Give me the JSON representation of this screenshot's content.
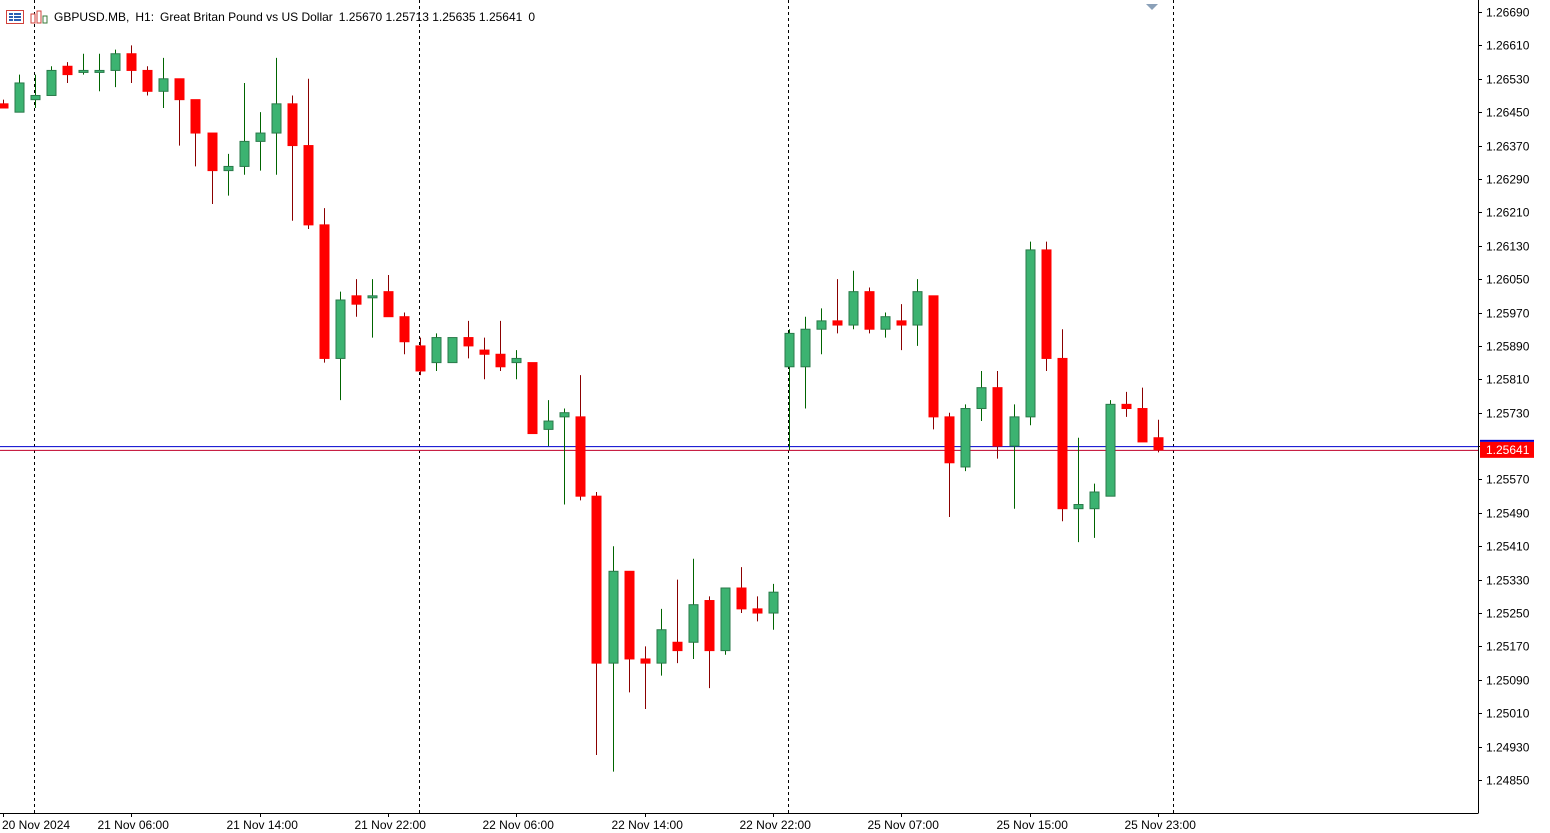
{
  "header": {
    "symbol": "GBPUSD.MB,",
    "timeframe": "H1:",
    "description": "Great Britan Pound vs US Dollar",
    "ohlc": "1.25670 1.25713 1.25635 1.25641",
    "volume": "0"
  },
  "current_price_label": "1.25641",
  "colors": {
    "bull": "#3cb371",
    "bear": "#ff0000",
    "wick_bull": "#006400",
    "wick_bear": "#8b0000",
    "bid_line": "#0000cd",
    "ask_line": "#c0002a",
    "price_tag": "#ff0000",
    "grid_vline": "#000000",
    "axis": "#000000"
  },
  "icons": [
    "list-icon",
    "bar-chart-icon"
  ],
  "chart_data": {
    "type": "candlestick",
    "ylim": [
      1.2481,
      1.2671
    ],
    "y_ticks": [
      "1.26690",
      "1.26610",
      "1.26530",
      "1.26450",
      "1.26370",
      "1.26290",
      "1.26210",
      "1.26130",
      "1.26050",
      "1.25970",
      "1.25890",
      "1.25810",
      "1.25730",
      "1.25650",
      "1.25570",
      "1.25490",
      "1.25410",
      "1.25330",
      "1.25250",
      "1.25170",
      "1.25090",
      "1.25010",
      "1.24930",
      "1.24850"
    ],
    "x_labels": [
      "20 Nov 2024",
      "21 Nov 06:00",
      "21 Nov 14:00",
      "21 Nov 22:00",
      "22 Nov 06:00",
      "22 Nov 14:00",
      "22 Nov 22:00",
      "25 Nov 07:00",
      "25 Nov 15:00",
      "25 Nov 23:00"
    ],
    "x_label_index": [
      0,
      8,
      16,
      24,
      32,
      40,
      48,
      56,
      64,
      72
    ],
    "session_separators": [
      2,
      26,
      49,
      73
    ],
    "bid": 1.25641,
    "ask": 1.2565,
    "candles": [
      [
        1.2647,
        1.2648,
        1.2646,
        1.2646
      ],
      [
        1.2645,
        1.2654,
        1.2645,
        1.2652
      ],
      [
        1.2648,
        1.2654,
        1.2646,
        1.2649
      ],
      [
        1.2649,
        1.2656,
        1.2649,
        1.2655
      ],
      [
        1.2656,
        1.2657,
        1.2652,
        1.2654
      ],
      [
        1.2655,
        1.2659,
        1.2654,
        1.2655
      ],
      [
        1.2655,
        1.2659,
        1.265,
        1.2655
      ],
      [
        1.2655,
        1.266,
        1.2651,
        1.2659
      ],
      [
        1.2659,
        1.2661,
        1.2652,
        1.2655
      ],
      [
        1.2655,
        1.2656,
        1.2649,
        1.265
      ],
      [
        1.265,
        1.2658,
        1.2646,
        1.2653
      ],
      [
        1.2653,
        1.2653,
        1.2637,
        1.2648
      ],
      [
        1.2648,
        1.2648,
        1.2632,
        1.264
      ],
      [
        1.264,
        1.264,
        1.2623,
        1.2631
      ],
      [
        1.2631,
        1.2635,
        1.2625,
        1.2632
      ],
      [
        1.2632,
        1.2652,
        1.263,
        1.2638
      ],
      [
        1.2638,
        1.2645,
        1.2631,
        1.264
      ],
      [
        1.264,
        1.2658,
        1.263,
        1.2647
      ],
      [
        1.2647,
        1.2649,
        1.2619,
        1.2637
      ],
      [
        1.2637,
        1.2653,
        1.2617,
        1.2618
      ],
      [
        1.2618,
        1.2622,
        1.2585,
        1.2586
      ],
      [
        1.2586,
        1.2602,
        1.2576,
        1.26
      ],
      [
        1.2601,
        1.2605,
        1.2596,
        1.2599
      ],
      [
        1.2601,
        1.2605,
        1.2591,
        1.2601
      ],
      [
        1.2602,
        1.2606,
        1.2596,
        1.2596
      ],
      [
        1.2596,
        1.2597,
        1.2587,
        1.259
      ],
      [
        1.2589,
        1.2591,
        1.2582,
        1.2583
      ],
      [
        1.2585,
        1.2592,
        1.2583,
        1.2591
      ],
      [
        1.2585,
        1.2591,
        1.2585,
        1.2591
      ],
      [
        1.2591,
        1.2595,
        1.2586,
        1.2589
      ],
      [
        1.2588,
        1.2591,
        1.2581,
        1.2587
      ],
      [
        1.2587,
        1.2595,
        1.2583,
        1.2584
      ],
      [
        1.2585,
        1.2588,
        1.2581,
        1.2586
      ],
      [
        1.2585,
        1.2585,
        1.2569,
        1.2568
      ],
      [
        1.2569,
        1.2576,
        1.2565,
        1.2571
      ],
      [
        1.2572,
        1.2574,
        1.2551,
        1.2573
      ],
      [
        1.2572,
        1.2582,
        1.2552,
        1.2553
      ],
      [
        1.2553,
        1.2554,
        1.2491,
        1.2513
      ],
      [
        1.2513,
        1.2541,
        1.2487,
        1.2535
      ],
      [
        1.2535,
        1.2535,
        1.2506,
        1.2514
      ],
      [
        1.2514,
        1.2517,
        1.2502,
        1.2513
      ],
      [
        1.2513,
        1.2526,
        1.251,
        1.2521
      ],
      [
        1.2518,
        1.2533,
        1.2513,
        1.2516
      ],
      [
        1.2518,
        1.2538,
        1.2514,
        1.2527
      ],
      [
        1.2528,
        1.2529,
        1.2507,
        1.2516
      ],
      [
        1.2516,
        1.2531,
        1.2515,
        1.2531
      ],
      [
        1.2531,
        1.2536,
        1.2525,
        1.2526
      ],
      [
        1.2526,
        1.2529,
        1.2523,
        1.2525
      ],
      [
        1.2525,
        1.2532,
        1.2521,
        1.253
      ],
      [
        1.2584,
        1.2593,
        1.2564,
        1.2592
      ],
      [
        1.2584,
        1.2596,
        1.2574,
        1.2593
      ],
      [
        1.2593,
        1.2598,
        1.2587,
        1.2595
      ],
      [
        1.2595,
        1.2605,
        1.2592,
        1.2594
      ],
      [
        1.2594,
        1.2607,
        1.2593,
        1.2602
      ],
      [
        1.2602,
        1.2603,
        1.2592,
        1.2593
      ],
      [
        1.2593,
        1.2597,
        1.2591,
        1.2596
      ],
      [
        1.2595,
        1.2599,
        1.2588,
        1.2594
      ],
      [
        1.2594,
        1.2605,
        1.2589,
        1.2602
      ],
      [
        1.2601,
        1.2601,
        1.2569,
        1.2572
      ],
      [
        1.2572,
        1.2573,
        1.2548,
        1.2561
      ],
      [
        1.256,
        1.2575,
        1.2559,
        1.2574
      ],
      [
        1.2574,
        1.2583,
        1.2571,
        1.2579
      ],
      [
        1.2579,
        1.2583,
        1.2562,
        1.2565
      ],
      [
        1.2565,
        1.2575,
        1.255,
        1.2572
      ],
      [
        1.2572,
        1.2614,
        1.257,
        1.2612
      ],
      [
        1.2612,
        1.2614,
        1.2583,
        1.2586
      ],
      [
        1.2586,
        1.2593,
        1.2547,
        1.255
      ],
      [
        1.255,
        1.2567,
        1.2542,
        1.2551
      ],
      [
        1.255,
        1.2556,
        1.2543,
        1.2554
      ],
      [
        1.2553,
        1.2576,
        1.2553,
        1.2575
      ],
      [
        1.2575,
        1.2578,
        1.2572,
        1.2574
      ],
      [
        1.2574,
        1.2579,
        1.2566,
        1.2566
      ],
      [
        1.2567,
        1.25713,
        1.25635,
        1.25641
      ]
    ]
  }
}
